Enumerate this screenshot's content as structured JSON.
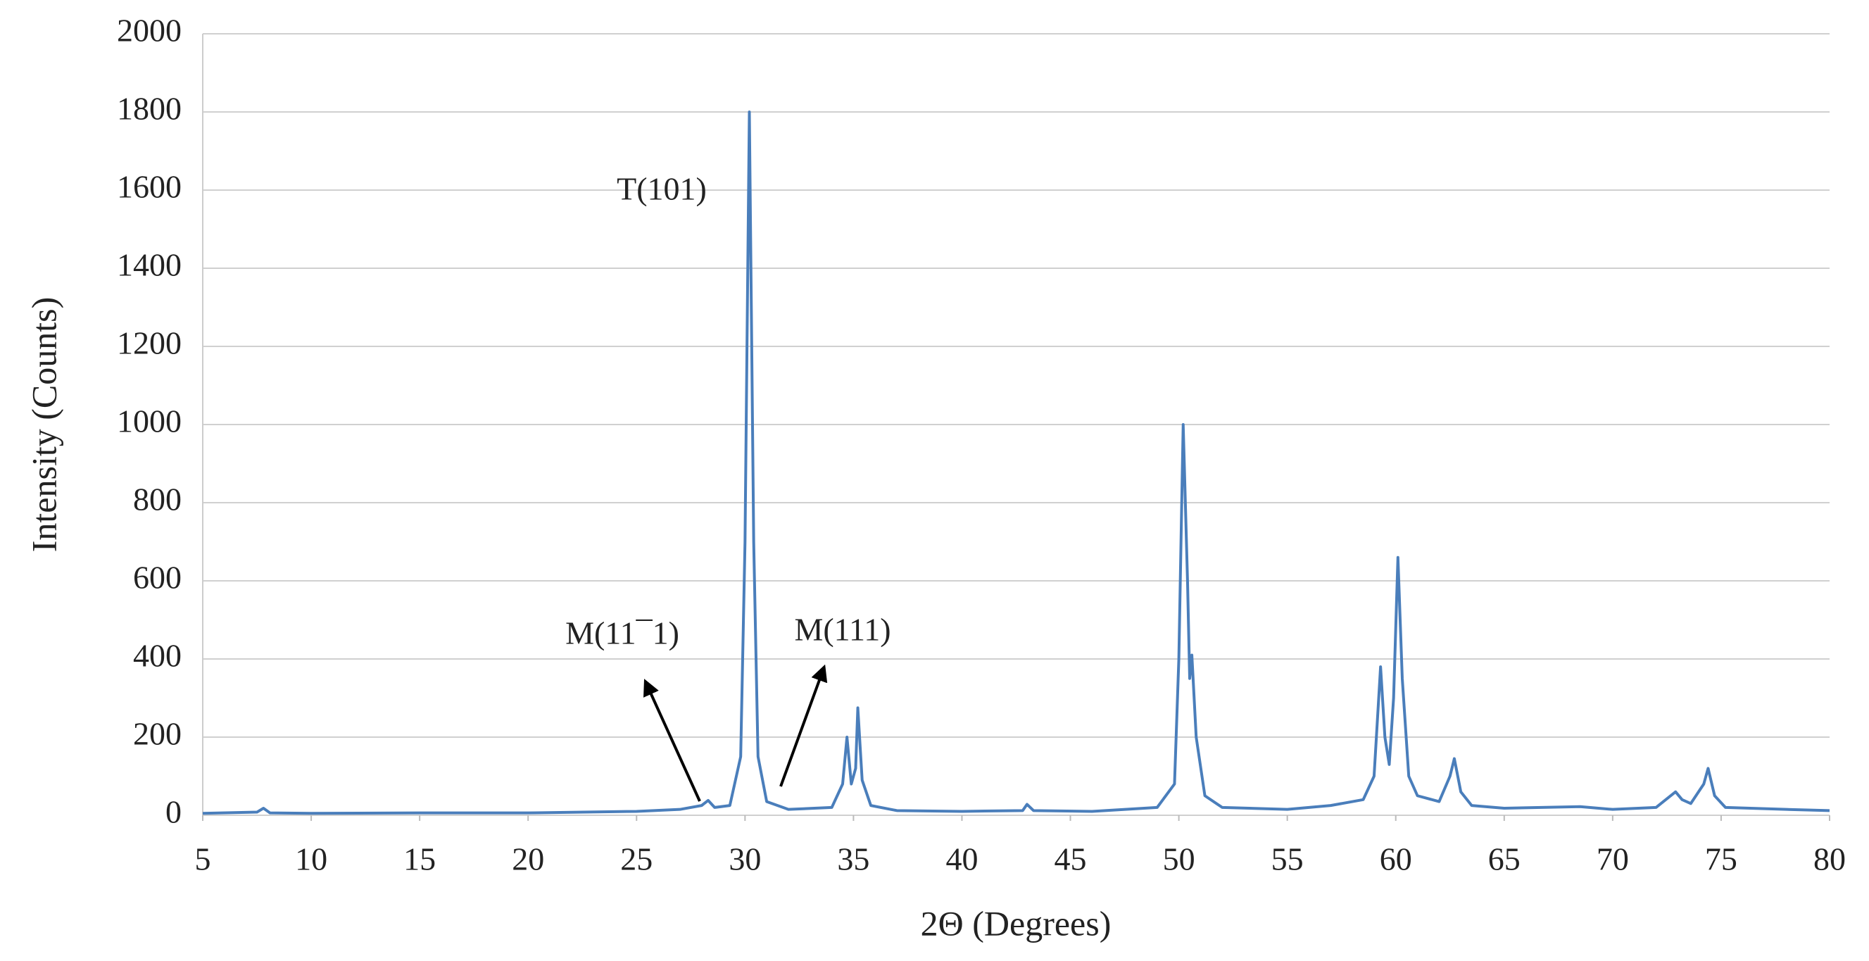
{
  "chart_data": {
    "type": "line",
    "x_label": "2Θ (Degrees)",
    "y_label": "Intensity (Counts)",
    "annotations": [
      "T(101)",
      "M(11¯1)",
      "M(111)"
    ],
    "xlim": [
      5,
      80
    ],
    "xticks": [
      5,
      10,
      15,
      20,
      25,
      30,
      35,
      40,
      45,
      50,
      55,
      60,
      65,
      70,
      75,
      80
    ],
    "ylim": [
      0,
      2000
    ],
    "yticks": [
      0,
      200,
      400,
      600,
      800,
      1000,
      1200,
      1400,
      1600,
      1800,
      2000
    ],
    "grid": true,
    "series": [
      {
        "color": "#4a7ebb",
        "x": [
          5,
          7.5,
          7.8,
          8.1,
          10,
          15,
          20,
          25,
          27,
          28,
          28.3,
          28.6,
          29.3,
          29.8,
          30.0,
          30.2,
          30.4,
          30.6,
          31,
          32,
          34,
          34.5,
          34.7,
          34.9,
          35.1,
          35.2,
          35.4,
          35.8,
          37,
          40,
          42.8,
          43.0,
          43.3,
          46,
          49,
          49.8,
          50.0,
          50.2,
          50.4,
          50.5,
          50.6,
          50.8,
          51.2,
          52,
          55,
          57,
          58.5,
          59,
          59.3,
          59.5,
          59.7,
          59.9,
          60.1,
          60.3,
          60.6,
          61,
          62,
          62.5,
          62.7,
          63,
          63.5,
          65,
          68.5,
          70,
          72,
          72.9,
          73.2,
          73.6,
          74.2,
          74.4,
          74.7,
          75.2,
          78,
          80
        ],
        "values": [
          5,
          8,
          18,
          6,
          5,
          6,
          6,
          10,
          15,
          25,
          38,
          20,
          25,
          150,
          700,
          1800,
          700,
          150,
          35,
          15,
          20,
          80,
          200,
          80,
          120,
          275,
          90,
          25,
          12,
          10,
          12,
          28,
          12,
          10,
          20,
          80,
          400,
          1000,
          600,
          350,
          410,
          200,
          50,
          20,
          15,
          25,
          40,
          100,
          380,
          200,
          130,
          300,
          660,
          350,
          100,
          50,
          35,
          100,
          145,
          60,
          25,
          18,
          22,
          15,
          20,
          60,
          40,
          30,
          80,
          120,
          50,
          20,
          15,
          12
        ]
      }
    ]
  }
}
